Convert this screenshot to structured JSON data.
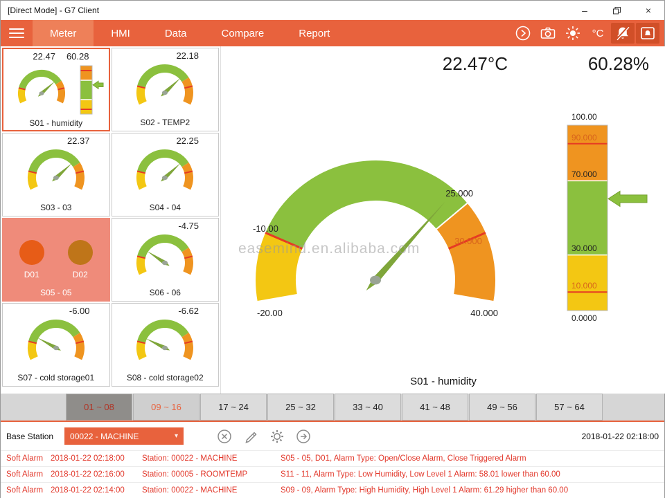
{
  "window": {
    "title": "[Direct Mode] - G7 Client",
    "minimize_label": "–",
    "close_label": "×"
  },
  "nav": {
    "tabs": [
      {
        "label": "Meter",
        "active": true
      },
      {
        "label": "HMI",
        "active": false
      },
      {
        "label": "Data",
        "active": false
      },
      {
        "label": "Compare",
        "active": false
      },
      {
        "label": "Report",
        "active": false
      }
    ],
    "celsius_label": "°C"
  },
  "sidebar": {
    "cards": [
      {
        "id": "S01",
        "label": "S01 - humidity",
        "selected": true,
        "alarm": false,
        "type": "gauge-bar",
        "values": [
          "22.47",
          "60.28"
        ],
        "gauge": {
          "min": -20,
          "max": 40,
          "value": 22.47,
          "segments": [
            {
              "from": -20,
              "to": -10,
              "color": "#f3c713"
            },
            {
              "from": -10,
              "to": 25,
              "color": "#8bc03e"
            },
            {
              "from": 25,
              "to": 40,
              "color": "#ef9420"
            }
          ],
          "ticks": [
            -10,
            30
          ]
        },
        "bar": {
          "min": 0,
          "max": 100,
          "value": 60.28,
          "segments": [
            {
              "from": 0,
              "to": 30,
              "color": "#f3c713"
            },
            {
              "from": 30,
              "to": 70,
              "color": "#8bc03e"
            },
            {
              "from": 70,
              "to": 100,
              "color": "#ef9420"
            }
          ],
          "lines": [
            30,
            70
          ],
          "ticks": [
            10,
            90
          ]
        }
      },
      {
        "id": "S02",
        "label": "S02 - TEMP2",
        "selected": false,
        "alarm": false,
        "type": "gauge",
        "values": [
          "22.18"
        ],
        "gauge": {
          "min": -20,
          "max": 40,
          "value": 22.18,
          "segments": [
            {
              "from": -20,
              "to": -10,
              "color": "#f3c713"
            },
            {
              "from": -10,
              "to": 25,
              "color": "#8bc03e"
            },
            {
              "from": 25,
              "to": 40,
              "color": "#ef9420"
            }
          ],
          "ticks": [
            -10,
            30
          ]
        }
      },
      {
        "id": "S03",
        "label": "S03 - 03",
        "selected": false,
        "alarm": false,
        "type": "gauge",
        "values": [
          "22.37"
        ],
        "gauge": {
          "min": -20,
          "max": 40,
          "value": 22.37,
          "segments": [
            {
              "from": -20,
              "to": -10,
              "color": "#f3c713"
            },
            {
              "from": -10,
              "to": 25,
              "color": "#8bc03e"
            },
            {
              "from": 25,
              "to": 40,
              "color": "#ef9420"
            }
          ],
          "ticks": [
            -10,
            30
          ]
        }
      },
      {
        "id": "S04",
        "label": "S04 - 04",
        "selected": false,
        "alarm": false,
        "type": "gauge",
        "values": [
          "22.25"
        ],
        "gauge": {
          "min": -20,
          "max": 40,
          "value": 22.25,
          "segments": [
            {
              "from": -20,
              "to": -10,
              "color": "#f3c713"
            },
            {
              "from": -10,
              "to": 25,
              "color": "#8bc03e"
            },
            {
              "from": 25,
              "to": 40,
              "color": "#ef9420"
            }
          ],
          "ticks": [
            -10,
            30
          ]
        }
      },
      {
        "id": "S05",
        "label": "S05 - 05",
        "selected": false,
        "alarm": true,
        "type": "digital",
        "values": [],
        "channels": [
          {
            "label": "D01",
            "color": "#e75c17"
          },
          {
            "label": "D02",
            "color": "#bf7519"
          }
        ]
      },
      {
        "id": "S06",
        "label": "S06 - 06",
        "selected": false,
        "alarm": false,
        "type": "gauge",
        "values": [
          "-4.75"
        ],
        "gauge": {
          "min": -20,
          "max": 40,
          "value": -4.75,
          "segments": [
            {
              "from": -20,
              "to": -10,
              "color": "#f3c713"
            },
            {
              "from": -10,
              "to": 25,
              "color": "#8bc03e"
            },
            {
              "from": 25,
              "to": 40,
              "color": "#ef9420"
            }
          ],
          "ticks": [
            -10,
            30
          ]
        }
      },
      {
        "id": "S07",
        "label": "S07 - cold storage01",
        "selected": false,
        "alarm": false,
        "type": "gauge",
        "values": [
          "-6.00"
        ],
        "gauge": {
          "min": -20,
          "max": 40,
          "value": -6.0,
          "segments": [
            {
              "from": -20,
              "to": -10,
              "color": "#f3c713"
            },
            {
              "from": -10,
              "to": 25,
              "color": "#8bc03e"
            },
            {
              "from": 25,
              "to": 40,
              "color": "#ef9420"
            }
          ],
          "ticks": [
            -10,
            30
          ]
        }
      },
      {
        "id": "S08",
        "label": "S08 - cold storage02",
        "selected": false,
        "alarm": false,
        "type": "gauge",
        "values": [
          "-6.62"
        ],
        "gauge": {
          "min": -20,
          "max": 40,
          "value": -6.62,
          "segments": [
            {
              "from": -20,
              "to": -10,
              "color": "#f3c713"
            },
            {
              "from": -10,
              "to": 25,
              "color": "#8bc03e"
            },
            {
              "from": 25,
              "to": 40,
              "color": "#ef9420"
            }
          ],
          "ticks": [
            -10,
            30
          ]
        }
      }
    ]
  },
  "main": {
    "temp_value": "22.47°C",
    "humidity_value": "60.28%",
    "sensor_label": "S01 - humidity",
    "watermark": "easemind.en.alibaba.com",
    "gauge": {
      "min": -20,
      "max": 40,
      "value": 22.47,
      "segments": [
        {
          "from": -20,
          "to": -10,
          "color": "#f3c713"
        },
        {
          "from": -10,
          "to": 25,
          "color": "#8bc03e"
        },
        {
          "from": 25,
          "to": 40,
          "color": "#ef9420"
        }
      ],
      "lines": [
        25
      ],
      "ticks": [
        -10,
        30
      ],
      "scale_labels": [
        {
          "text": "-20.00",
          "color": "#222222"
        },
        {
          "text": "-10.00",
          "color": "#222222"
        },
        {
          "text": "25.000",
          "color": "#222222"
        },
        {
          "text": "30.000",
          "color": "#d8641c"
        },
        {
          "text": "40.000",
          "color": "#222222"
        }
      ]
    },
    "bar": {
      "min": 0,
      "max": 100,
      "value": 60.28,
      "segments": [
        {
          "from": 0,
          "to": 30,
          "color": "#f3c713"
        },
        {
          "from": 30,
          "to": 70,
          "color": "#8bc03e"
        },
        {
          "from": 70,
          "to": 100,
          "color": "#ef9420"
        }
      ],
      "lines": [
        30,
        70
      ],
      "ticks": [
        10,
        90
      ],
      "scale_labels": [
        {
          "text": "100.00",
          "color": "#222222"
        },
        {
          "text": "90.000",
          "color": "#d8641c"
        },
        {
          "text": "70.000",
          "color": "#222222"
        },
        {
          "text": "30.000",
          "color": "#222222"
        },
        {
          "text": "10.000",
          "color": "#d8641c"
        },
        {
          "text": "0.0000",
          "color": "#222222"
        }
      ]
    }
  },
  "group_tabs": [
    {
      "label": "01 ~ 08",
      "state": "active"
    },
    {
      "label": "09 ~ 16",
      "state": "alert"
    },
    {
      "label": "17 ~ 24",
      "state": "normal"
    },
    {
      "label": "25 ~ 32",
      "state": "normal"
    },
    {
      "label": "33 ~ 40",
      "state": "normal"
    },
    {
      "label": "41 ~ 48",
      "state": "normal"
    },
    {
      "label": "49 ~ 56",
      "state": "normal"
    },
    {
      "label": "57 ~ 64",
      "state": "normal"
    }
  ],
  "bottom_bar": {
    "base_station_label": "Base Station",
    "station_selected": "00022 - MACHINE",
    "timestamp": "2018-01-22 02:18:00"
  },
  "alarms": [
    {
      "type": "Soft Alarm",
      "time": "2018-01-22 02:18:00",
      "station": "Station: 00022 - MACHINE",
      "message": "S05 - 05, D01, Alarm Type: Open/Close Alarm, Close Triggered Alarm"
    },
    {
      "type": "Soft Alarm",
      "time": "2018-01-22 02:16:00",
      "station": "Station: 00005 - ROOMTEMP",
      "message": "S11 - 11, Alarm Type: Low Humidity, Low Level 1 Alarm: 58.01 lower than 60.00"
    },
    {
      "type": "Soft Alarm",
      "time": "2018-01-22 02:14:00",
      "station": "Station: 00022 - MACHINE",
      "message": "S09 - 09, Alarm Type: High Humidity, High Level 1 Alarm: 61.29 higher than 60.00"
    }
  ],
  "colors": {
    "accent_orange": "#e8623d",
    "nav_active_tab": "#ee8059",
    "pressed_icon_bg": "#d14f28",
    "gauge_green": "#8bc03e",
    "gauge_yellow": "#f3c713",
    "gauge_orange": "#ef9420",
    "threshold_red": "#e63b23",
    "needle_green": "#7fa63a",
    "alarm_text": "#e2372a",
    "alarm_card_bg": "#ef8b7a"
  }
}
